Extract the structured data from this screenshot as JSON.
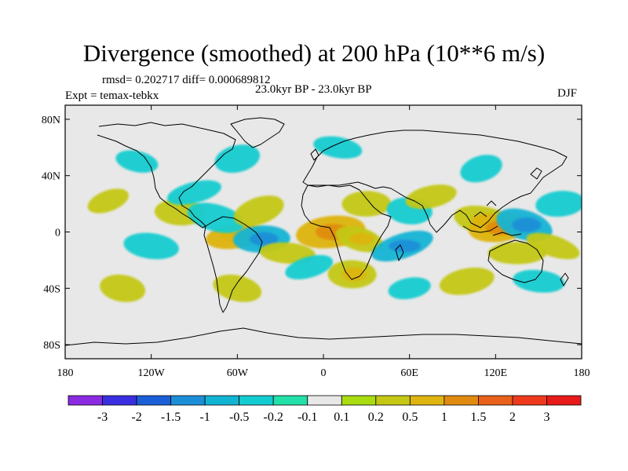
{
  "header": {
    "title": "Divergence (smoothed) at 200 hPa (10**6 m/s)",
    "stats": "rmsd= 0.202717 diff= 0.000689812",
    "period": "23.0kyr BP - 23.0kyr BP",
    "experiment": "Expt = temax-tebkx",
    "season": "DJF"
  },
  "chart_data": {
    "type": "heatmap",
    "variable": "Divergence (smoothed) at 200 hPa",
    "units": "10**6 m/s",
    "season": "DJF",
    "x_axis": {
      "range": [
        -180,
        180
      ],
      "ticks": [
        -180,
        -120,
        -60,
        0,
        60,
        120,
        180
      ],
      "tick_labels": [
        "180",
        "120W",
        "60W",
        "0",
        "60E",
        "120E",
        "180"
      ]
    },
    "y_axis": {
      "range": [
        -90,
        90
      ],
      "ticks": [
        80,
        40,
        0,
        -40,
        -80
      ],
      "tick_labels": [
        "80N",
        "40N",
        "0",
        "40S",
        "80S"
      ]
    },
    "colorbar": {
      "labels": [
        "-3",
        "-2",
        "-1.5",
        "-1",
        "-0.5",
        "-0.2",
        "-0.1",
        "0.1",
        "0.2",
        "0.5",
        "1",
        "1.5",
        "2",
        "3"
      ],
      "colors": [
        "#8a2be2",
        "#3a2fe0",
        "#1a5fd8",
        "#1c8ed8",
        "#12b4d4",
        "#13ccd0",
        "#22e0a8",
        "#e8e8e8",
        "#a8dc10",
        "#c4c814",
        "#deb410",
        "#e08a10",
        "#e8601a",
        "#ee3a1c",
        "#e81b1b"
      ]
    },
    "anomaly_regions": [
      {
        "lon": -150,
        "lat": 22,
        "value": 0.3
      },
      {
        "lon": -100,
        "lat": 14,
        "value": 0.35
      },
      {
        "lon": -90,
        "lat": 28,
        "value": -0.3
      },
      {
        "lon": -140,
        "lat": -40,
        "value": 0.4
      },
      {
        "lon": -62,
        "lat": -3,
        "value": 0.6
      },
      {
        "lon": -75,
        "lat": 10,
        "value": -0.4
      },
      {
        "lon": -43,
        "lat": -5,
        "value": -0.8
      },
      {
        "lon": -45,
        "lat": 15,
        "value": 0.4
      },
      {
        "lon": -25,
        "lat": -15,
        "value": 0.3
      },
      {
        "lon": -60,
        "lat": 52,
        "value": -0.4
      },
      {
        "lon": 10,
        "lat": 60,
        "value": -0.3
      },
      {
        "lon": 5,
        "lat": 0,
        "value": 0.8
      },
      {
        "lon": 25,
        "lat": -5,
        "value": 0.5
      },
      {
        "lon": 30,
        "lat": 20,
        "value": 0.3
      },
      {
        "lon": 55,
        "lat": -10,
        "value": -0.6
      },
      {
        "lon": 60,
        "lat": 15,
        "value": -0.4
      },
      {
        "lon": 75,
        "lat": 25,
        "value": 0.4
      },
      {
        "lon": 112,
        "lat": 8,
        "value": 0.5
      },
      {
        "lon": 122,
        "lat": 3,
        "value": 0.9
      },
      {
        "lon": 140,
        "lat": 5,
        "value": -0.6
      },
      {
        "lon": 135,
        "lat": -15,
        "value": 0.4
      },
      {
        "lon": 110,
        "lat": 45,
        "value": -0.3
      },
      {
        "lon": 150,
        "lat": -35,
        "value": -0.4
      },
      {
        "lon": 100,
        "lat": -35,
        "value": 0.3
      },
      {
        "lon": -130,
        "lat": 50,
        "value": -0.3
      },
      {
        "lon": 165,
        "lat": 20,
        "value": -0.3
      },
      {
        "lon": 160,
        "lat": -10,
        "value": 0.3
      },
      {
        "lon": 20,
        "lat": -30,
        "value": 0.5
      },
      {
        "lon": -10,
        "lat": -25,
        "value": -0.3
      },
      {
        "lon": -120,
        "lat": -10,
        "value": -0.3
      },
      {
        "lon": 60,
        "lat": -40,
        "value": -0.3
      },
      {
        "lon": -60,
        "lat": -40,
        "value": 0.3
      }
    ]
  }
}
